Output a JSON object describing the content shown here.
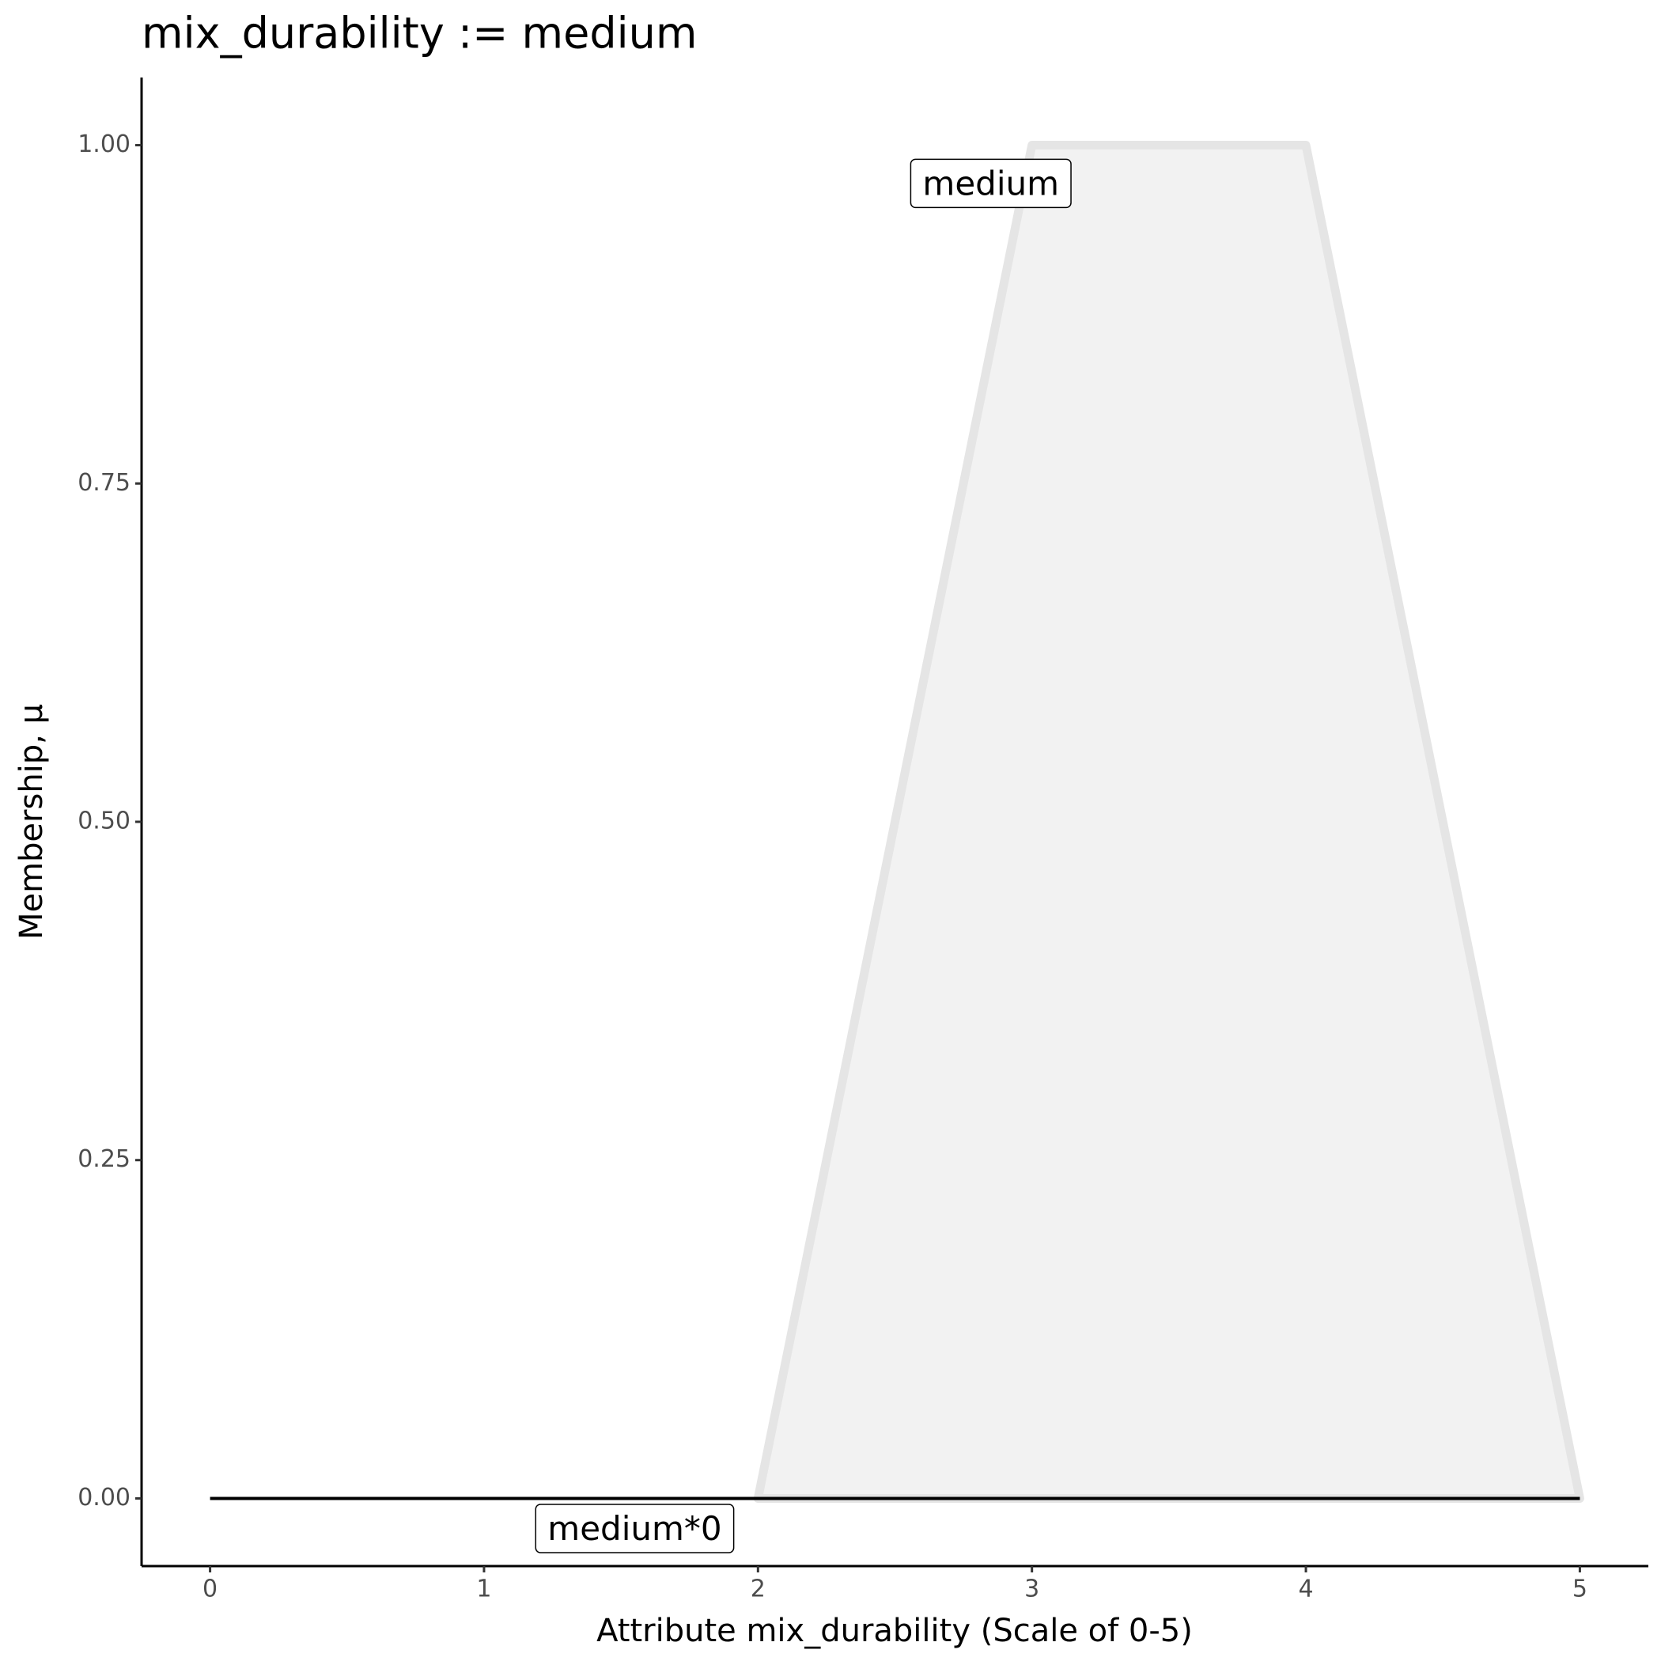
{
  "chart_data": {
    "type": "line",
    "title": "mix_durability := medium",
    "x_label": "Attribute mix_durability (Scale of 0-5)",
    "y_label": "Membership, μ",
    "series": [
      {
        "name": "medium",
        "color": "#e5e5e5",
        "fill": "#f2f2f2",
        "x": [
          2,
          3,
          4,
          5
        ],
        "values": [
          0,
          1,
          1,
          0
        ]
      },
      {
        "name": "medium*0",
        "color": "#000000",
        "x": [
          0,
          5
        ],
        "values": [
          0,
          0
        ]
      }
    ],
    "xlim": [
      -0.25,
      5.25
    ],
    "ylim": [
      -0.05,
      1.05
    ],
    "xticks": [
      0,
      1,
      2,
      3,
      4,
      5
    ],
    "yticks": [
      {
        "value": 0,
        "label": "0.00"
      },
      {
        "value": 0.25,
        "label": "0.25"
      },
      {
        "value": 0.5,
        "label": "0.50"
      },
      {
        "value": 0.75,
        "label": "0.75"
      },
      {
        "value": 1,
        "label": "1.00"
      }
    ],
    "grid": false
  }
}
